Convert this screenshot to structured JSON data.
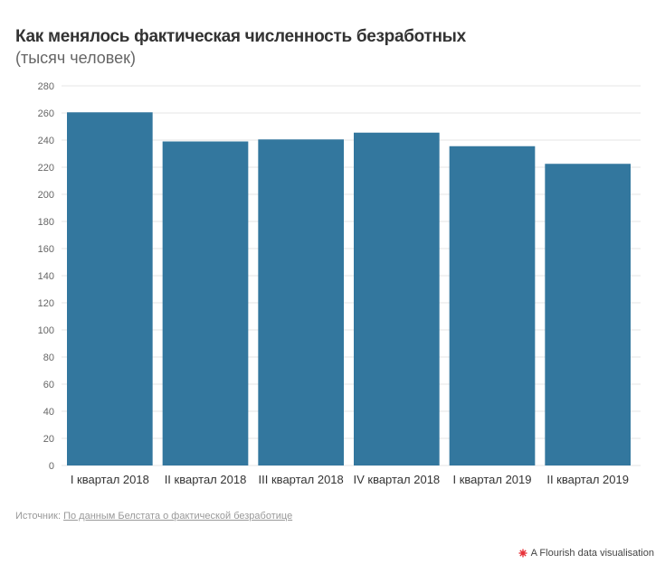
{
  "header": {
    "title": "Как менялось фактическая численность безработных",
    "subtitle": "(тысяч человек)"
  },
  "footer": {
    "source_prefix": "Источник:",
    "source_link": "По данным Белстата о фактической безработице",
    "credit": "A Flourish data visualisation"
  },
  "colors": {
    "bar": "#33779e",
    "grid": "#e6e6e6",
    "axis_text": "#666666",
    "credit_icon": "#e8333a"
  },
  "chart_data": {
    "type": "bar",
    "title": "Как менялось фактическая численность безработных",
    "subtitle": "(тысяч человек)",
    "categories": [
      "I квартал 2018",
      "II квартал 2018",
      "III квартал 2018",
      "IV квартал 2018",
      "I квартал 2019",
      "II квартал 2019"
    ],
    "values": [
      260.5,
      239,
      240.5,
      245.5,
      235.5,
      222.5
    ],
    "ylim": [
      0,
      280
    ],
    "yticks": [
      0,
      20,
      40,
      60,
      80,
      100,
      120,
      140,
      160,
      180,
      200,
      220,
      240,
      260,
      280
    ],
    "grid": true,
    "legend": "none"
  }
}
